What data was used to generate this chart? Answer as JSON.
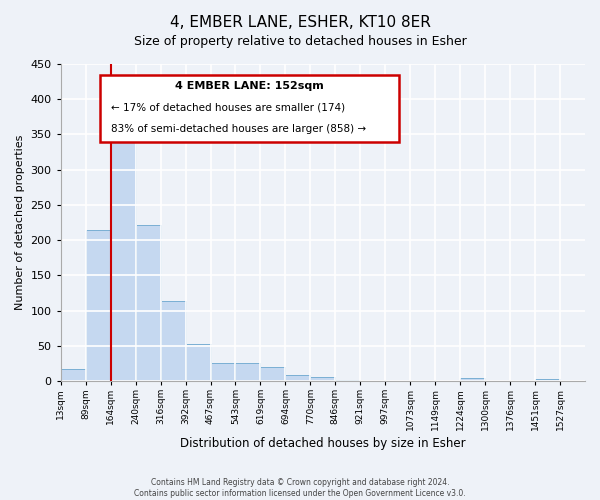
{
  "title": "4, EMBER LANE, ESHER, KT10 8ER",
  "subtitle": "Size of property relative to detached houses in Esher",
  "xlabel": "Distribution of detached houses by size in Esher",
  "ylabel": "Number of detached properties",
  "bar_labels": [
    "13sqm",
    "89sqm",
    "164sqm",
    "240sqm",
    "316sqm",
    "392sqm",
    "467sqm",
    "543sqm",
    "619sqm",
    "694sqm",
    "770sqm",
    "846sqm",
    "921sqm",
    "997sqm",
    "1073sqm",
    "1149sqm",
    "1224sqm",
    "1300sqm",
    "1376sqm",
    "1451sqm",
    "1527sqm"
  ],
  "bar_values": [
    17,
    215,
    340,
    222,
    113,
    53,
    26,
    26,
    20,
    8,
    5,
    2,
    0,
    0,
    0,
    0,
    4,
    0,
    0,
    3,
    0
  ],
  "bar_color": "#c5d8f0",
  "bar_edge_color": "#7aafd4",
  "property_line_label": "4 EMBER LANE: 152sqm",
  "property_line_bin": 2,
  "line_color": "#cc0000",
  "annotation_line1": "← 17% of detached houses are smaller (174)",
  "annotation_line2": "83% of semi-detached houses are larger (858) →",
  "ylim": [
    0,
    450
  ],
  "yticks": [
    0,
    50,
    100,
    150,
    200,
    250,
    300,
    350,
    400,
    450
  ],
  "footnote1": "Contains HM Land Registry data © Crown copyright and database right 2024.",
  "footnote2": "Contains public sector information licensed under the Open Government Licence v3.0.",
  "bg_color": "#eef2f8",
  "grid_color": "#ffffff",
  "box_color": "#cc0000",
  "title_fontsize": 11,
  "subtitle_fontsize": 9
}
